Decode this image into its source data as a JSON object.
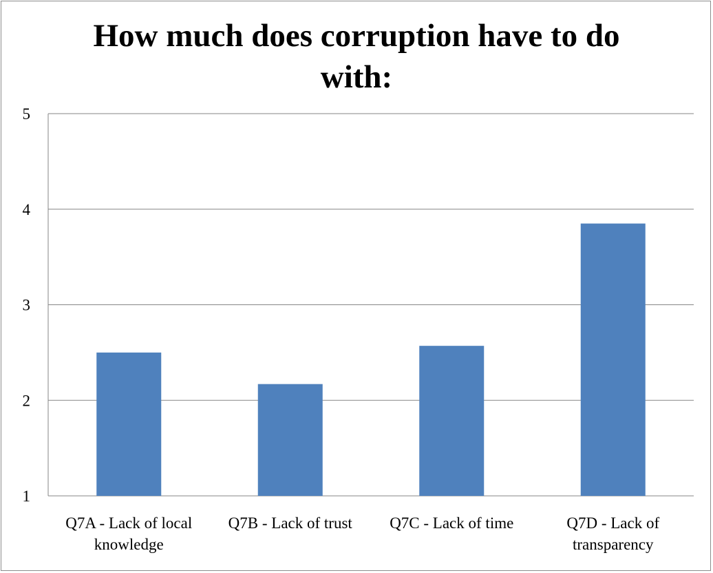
{
  "chart_data": {
    "type": "bar",
    "title_lines": [
      "How much does corruption have to do",
      "with:"
    ],
    "categories": [
      [
        "Q7A - Lack of local",
        "knowledge"
      ],
      [
        "Q7B - Lack of trust"
      ],
      [
        "Q7C - Lack of time"
      ],
      [
        "Q7D - Lack of",
        "transparency"
      ]
    ],
    "values": [
      2.5,
      2.17,
      2.57,
      3.85
    ],
    "ylim": [
      1,
      5
    ],
    "yticks": [
      "1",
      "2",
      "3",
      "4",
      "5"
    ],
    "grid": true,
    "legend": "none",
    "bar_color": "#4f81bd",
    "grid_color": "#868686"
  }
}
